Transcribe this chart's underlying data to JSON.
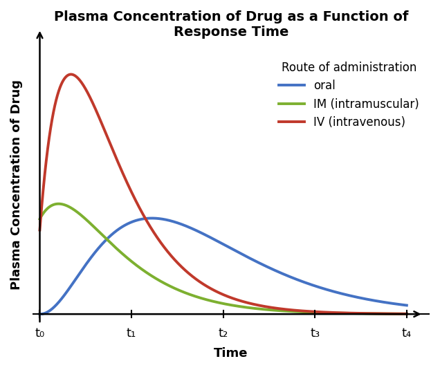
{
  "title": "Plasma Concentration of Drug as a Function of\nResponse Time",
  "xlabel": "Time",
  "ylabel": "Plasma Concentration of Drug",
  "legend_title": "Route of administration",
  "x_ticks": [
    0,
    1,
    2,
    3,
    4
  ],
  "x_tick_labels": [
    "t₀",
    "t₁",
    "t₂",
    "t₃",
    "t₄"
  ],
  "oral_color": "#4472C4",
  "im_color": "#7DB030",
  "iv_color": "#C0392B",
  "line_width": 2.8,
  "title_fontsize": 14,
  "axis_label_fontsize": 13,
  "tick_fontsize": 13,
  "legend_fontsize": 12,
  "background_color": "#ffffff",
  "iv_peak_t": 0.12,
  "iv_decay": 0.9,
  "im_peak_t": 0.85,
  "im_scale": 0.46,
  "oral_peak_t": 1.1,
  "oral_scale": 0.4
}
